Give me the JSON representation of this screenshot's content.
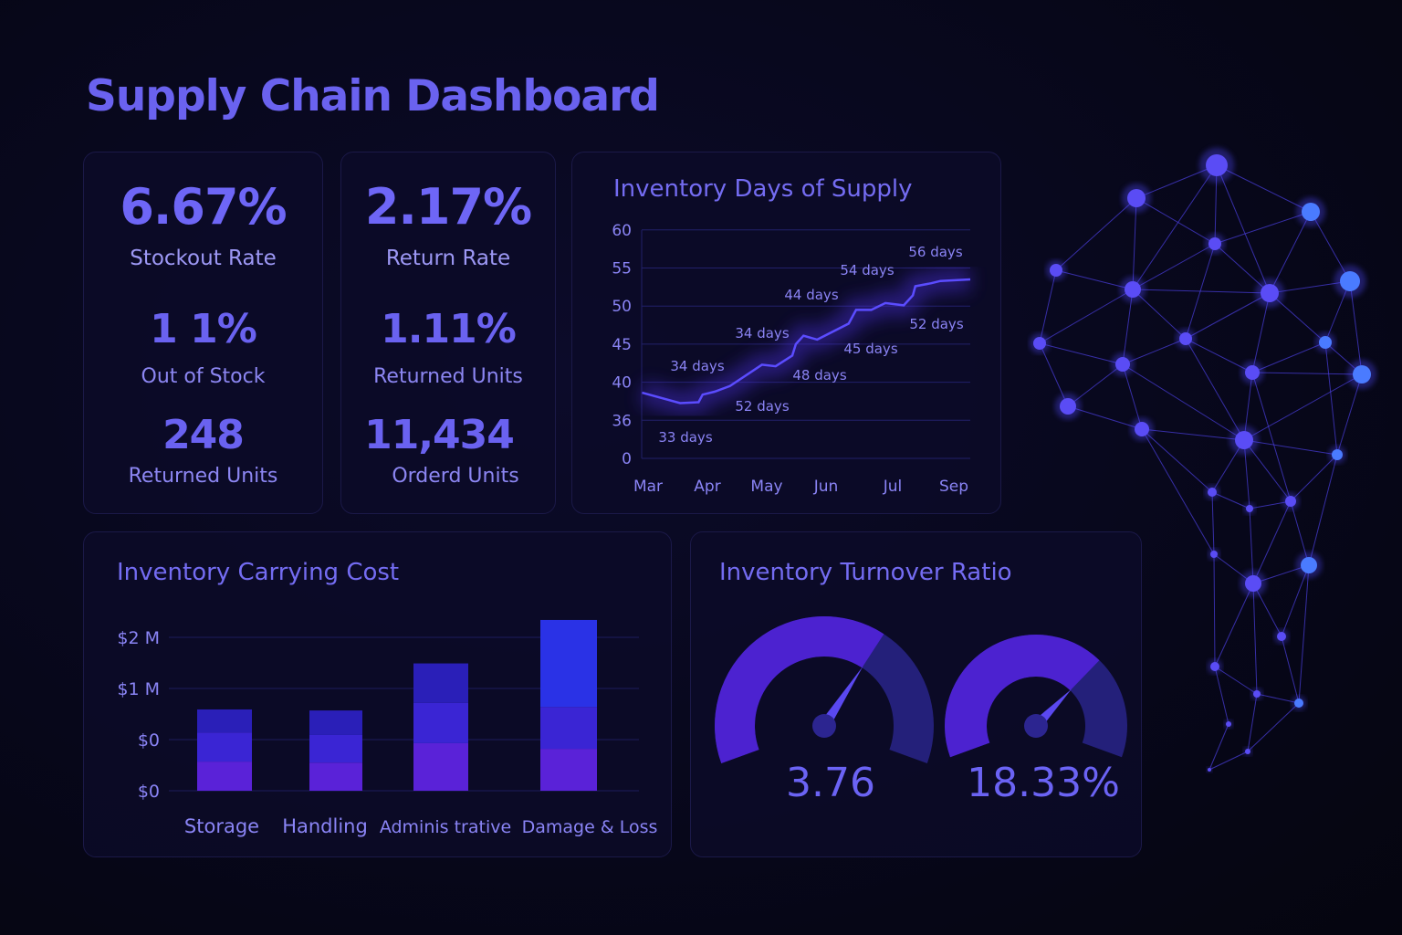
{
  "header": {
    "title": "Supply Chain Dashboard"
  },
  "kpi_card_1": {
    "primary_value": "6.67%",
    "primary_label": "Stockout Rate",
    "secondary_value": "1 1%",
    "secondary_label": "Out of Stock",
    "tertiary_value": "248",
    "tertiary_label": "Returned Units"
  },
  "kpi_card_2": {
    "primary_value": "2.17%",
    "primary_label": "Return Rate",
    "secondary_value": "1.11%",
    "secondary_label": "Returned Units",
    "tertiary_value": "11,434",
    "tertiary_label": "Orderd Units"
  },
  "colors": {
    "accent": "#6c63f5",
    "background": "#07071a",
    "card": "#0c0b28",
    "bar_bottom": "#5a22d8",
    "bar_middle": "#3a25d4",
    "bar_top": "#2a1fb8",
    "bar_top_highlight": "#2a32e6",
    "gauge_fill": "#4c22d0",
    "gauge_track": "#24207a"
  },
  "chart_data": [
    {
      "type": "line",
      "title": "Inventory Days of Supply",
      "y_tick_labels": [
        "0",
        "36",
        "40",
        "45",
        "50",
        "55",
        "60"
      ],
      "x_tick_labels": [
        "Mar",
        "Apr",
        "May",
        "Jun",
        "Jul",
        "Sep"
      ],
      "grid": true,
      "points_note_units": "x = month position on axis (Mar=0 ... Sep=5), y = days",
      "x": [
        -0.1,
        0.54,
        0.85,
        0.92,
        1.12,
        1.38,
        1.92,
        2.15,
        2.43,
        2.49,
        2.62,
        2.85,
        3.34,
        3.45,
        3.68,
        3.89,
        4.18,
        4.33,
        4.37,
        4.63,
        4.78,
        5.27
      ],
      "y": [
        38.9,
        37.8,
        37.9,
        38.7,
        39.0,
        39.6,
        42.3,
        42.1,
        43.5,
        45.0,
        46.1,
        45.6,
        47.7,
        49.5,
        49.5,
        50.4,
        50.1,
        51.4,
        52.6,
        53.0,
        53.3,
        53.5
      ],
      "annotations": [
        "56 days",
        "54 days",
        "44 days",
        "34 days",
        "34 days",
        "52 days",
        "45 days",
        "48 days",
        "52 days",
        "33 days"
      ]
    },
    {
      "type": "bar",
      "stacked": true,
      "title": "Inventory Carrying Cost",
      "y_tick_labels": [
        "$0",
        "$0",
        "$1 M",
        "$2 M"
      ],
      "categories": [
        "Storage",
        "Handling",
        "Adminis trative",
        "Damage & Loss"
      ],
      "series": [
        {
          "values": [
            0.57,
            0.55,
            0.93,
            0.82
          ]
        },
        {
          "values": [
            0.57,
            0.54,
            0.79,
            0.82
          ]
        },
        {
          "values": [
            0.45,
            0.48,
            0.77,
            1.7
          ]
        }
      ],
      "grid": true
    }
  ],
  "turnover": {
    "title": "Inventory Turnover Ratio",
    "gauges": [
      {
        "value": "3.76",
        "fill": 0.65
      },
      {
        "value": "18.33%",
        "fill": 0.7
      }
    ]
  }
}
